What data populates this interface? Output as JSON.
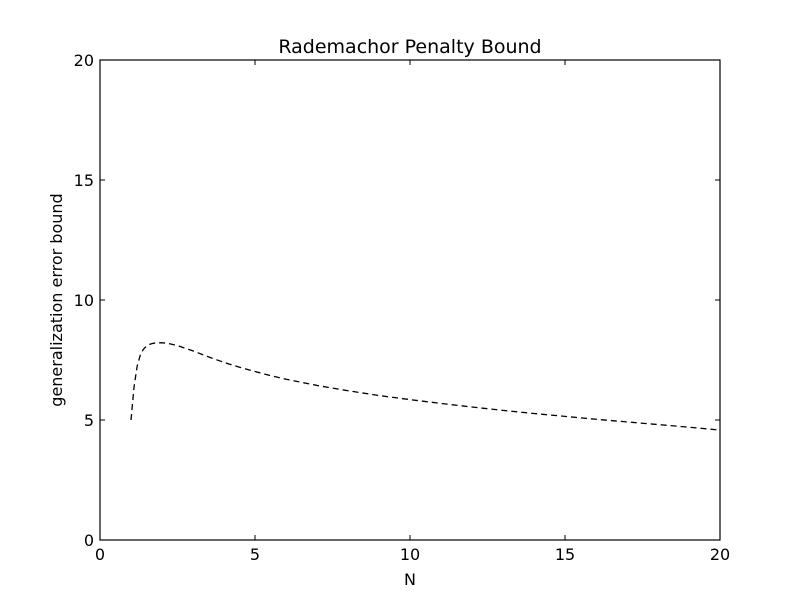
{
  "chart_data": {
    "type": "line",
    "title": "Rademachor Penalty Bound",
    "xlabel": "N",
    "ylabel": "generalization error bound",
    "xlim": [
      0,
      20
    ],
    "ylim": [
      0,
      20
    ],
    "xticks": [
      0,
      5,
      10,
      15,
      20
    ],
    "yticks": [
      0,
      5,
      10,
      15,
      20
    ],
    "xtick_labels": [
      "0",
      "5",
      "10",
      "15",
      "20"
    ],
    "ytick_labels": [
      "0",
      "5",
      "10",
      "15",
      "20"
    ],
    "grid": false,
    "legend": "none",
    "series": [
      {
        "line_style": "dashed",
        "color": "#000000",
        "x": [
          1.0,
          1.1,
          1.2,
          1.3,
          1.4,
          1.5,
          1.6,
          1.7,
          1.8,
          2.0,
          2.2,
          2.5,
          3.0,
          3.5,
          4.0,
          4.5,
          5.0,
          5.5,
          6.0,
          7.0,
          8.0,
          9.0,
          10.0,
          11.0,
          12.0,
          13.0,
          14.0,
          15.0,
          16.0,
          17.0,
          18.0,
          19.0,
          20.0
        ],
        "y": [
          5.0,
          6.4,
          7.25,
          7.7,
          7.95,
          8.08,
          8.15,
          8.19,
          8.21,
          8.22,
          8.19,
          8.1,
          7.88,
          7.63,
          7.4,
          7.2,
          7.02,
          6.85,
          6.7,
          6.44,
          6.22,
          6.02,
          5.85,
          5.69,
          5.54,
          5.4,
          5.27,
          5.15,
          5.03,
          4.92,
          4.81,
          4.7,
          4.58
        ]
      }
    ]
  }
}
